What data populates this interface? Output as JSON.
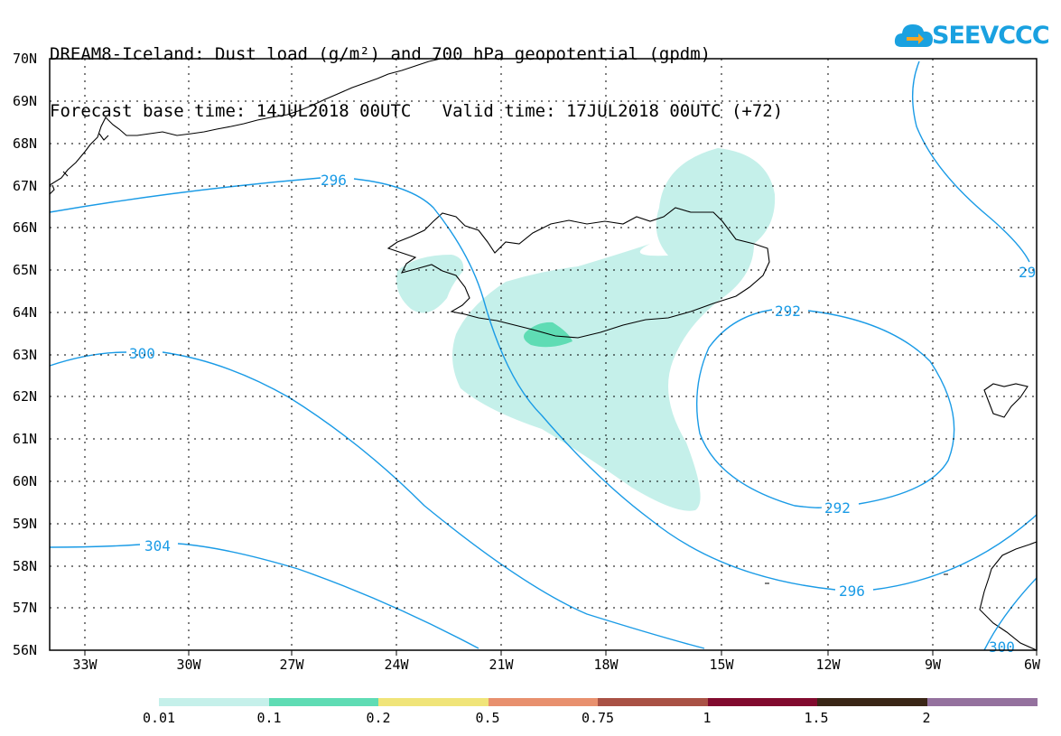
{
  "title": {
    "line1": "DREAM8-Iceland: Dust load (g/m²) and 700 hPa geopotential (gpdm)",
    "line2": "Forecast base time: 14JUL2018 00UTC   Valid time: 17JUL2018 00UTC (+72)"
  },
  "logo": {
    "text": "SEEVCCC",
    "icon": "cloud-icon",
    "color": "#1aa1e0"
  },
  "axes": {
    "lat_labels": [
      "70N",
      "69N",
      "68N",
      "67N",
      "66N",
      "65N",
      "64N",
      "63N",
      "62N",
      "61N",
      "60N",
      "59N",
      "58N",
      "57N",
      "56N"
    ],
    "lon_labels": [
      "33W",
      "30W",
      "27W",
      "24W",
      "21W",
      "18W",
      "15W",
      "12W",
      "9W",
      "6W"
    ]
  },
  "contours": {
    "color": "#1a9be6",
    "labels": [
      "296",
      "300",
      "304",
      "292",
      "292",
      "296",
      "300",
      "29"
    ]
  },
  "colorbar": {
    "ticks": [
      "0.01",
      "0.1",
      "0.2",
      "0.5",
      "0.75",
      "1",
      "1.5",
      "2"
    ],
    "colors": [
      "#c5f0ea",
      "#5fdcb4",
      "#f0e479",
      "#e8906e",
      "#a95145",
      "#810a2e",
      "#3a2616",
      "#94719e"
    ]
  },
  "fills": {
    "light": "#c5f0ea",
    "medium": "#5fdcb4"
  }
}
